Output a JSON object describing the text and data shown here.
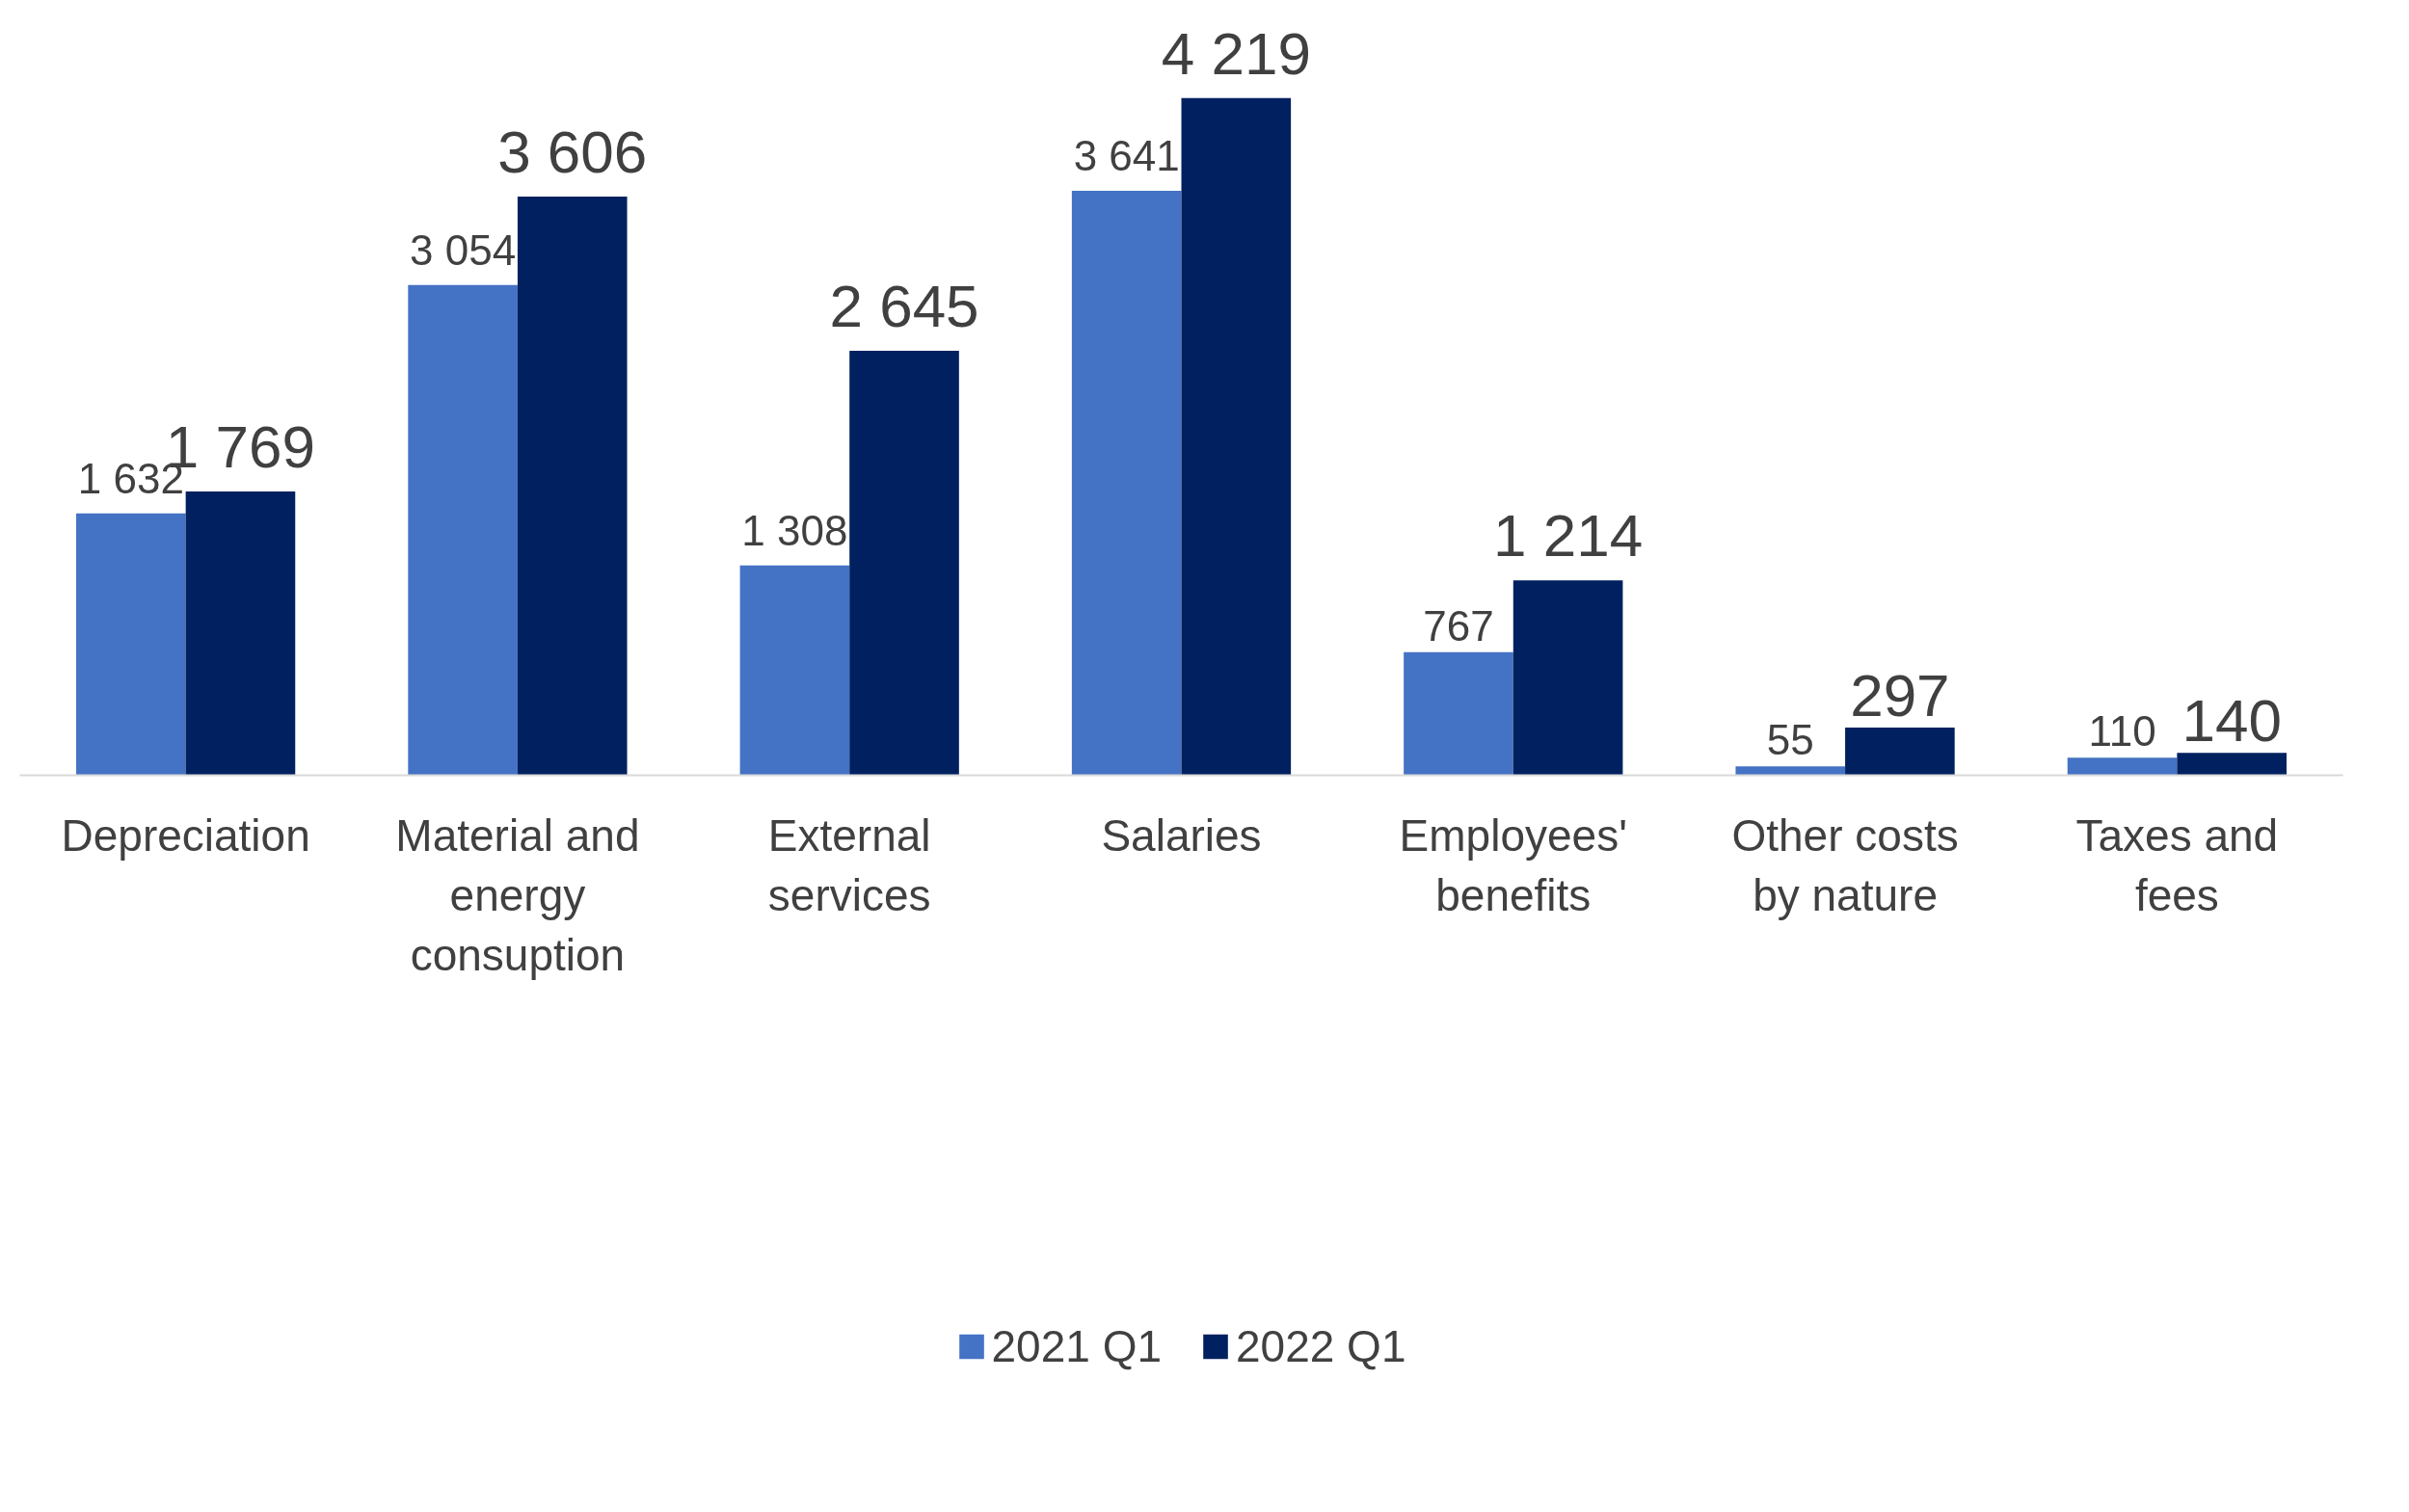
{
  "chart_data": {
    "type": "bar",
    "categories": [
      "Depreciation",
      "Material and energy consuption",
      "External services",
      "Salaries",
      "Employees' benefits",
      "Other costs by nature",
      "Taxes and fees"
    ],
    "series": [
      {
        "name": "2021 Q1",
        "color": "#4472c4",
        "values": [
          1632,
          3054,
          1308,
          3641,
          767,
          55,
          110
        ],
        "value_labels": [
          "1 632",
          "3 054",
          "1 308",
          "3 641",
          "767",
          "55",
          "110"
        ]
      },
      {
        "name": "2022 Q1",
        "color": "#002060",
        "values": [
          1769,
          3606,
          2645,
          4219,
          1214,
          297,
          140
        ],
        "value_labels": [
          "1 769",
          "3 606",
          "2 645",
          "4 219",
          "1 214",
          "297",
          "140"
        ]
      }
    ],
    "legend": "bottom",
    "grid": false
  }
}
